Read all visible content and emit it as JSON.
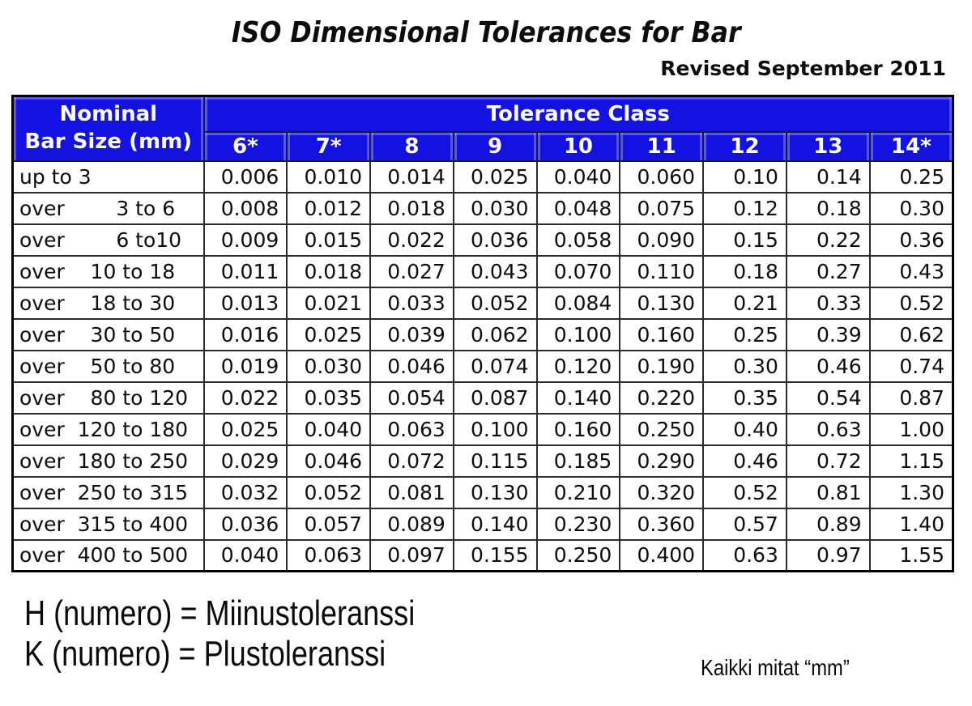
{
  "title": "ISO Dimensional Tolerances for Bar",
  "revised": "Revised September 2011",
  "colors": {
    "header_blue": "#1412e2",
    "header_text": "#ffffff",
    "grid_border": "#2b2b2b",
    "outer_border": "#000000"
  },
  "table": {
    "corner_line1": "Nominal",
    "corner_line2": "Bar Size (mm)",
    "group_header": "Tolerance Class",
    "class_columns": [
      "6*",
      "7*",
      "8",
      "9",
      "10",
      "11",
      "12",
      "13",
      "14*"
    ],
    "rows": [
      {
        "size": "up to 3",
        "values": [
          "0.006",
          "0.010",
          "0.014",
          "0.025",
          "0.040",
          "0.060",
          "0.10",
          "0.14",
          "0.25"
        ]
      },
      {
        "size": "over        3 to 6",
        "values": [
          "0.008",
          "0.012",
          "0.018",
          "0.030",
          "0.048",
          "0.075",
          "0.12",
          "0.18",
          "0.30"
        ]
      },
      {
        "size": "over        6 to10",
        "values": [
          "0.009",
          "0.015",
          "0.022",
          "0.036",
          "0.058",
          "0.090",
          "0.15",
          "0.22",
          "0.36"
        ]
      },
      {
        "size": "over    10 to 18",
        "values": [
          "0.011",
          "0.018",
          "0.027",
          "0.043",
          "0.070",
          "0.110",
          "0.18",
          "0.27",
          "0.43"
        ]
      },
      {
        "size": "over    18 to 30",
        "values": [
          "0.013",
          "0.021",
          "0.033",
          "0.052",
          "0.084",
          "0.130",
          "0.21",
          "0.33",
          "0.52"
        ]
      },
      {
        "size": "over    30 to 50",
        "values": [
          "0.016",
          "0.025",
          "0.039",
          "0.062",
          "0.100",
          "0.160",
          "0.25",
          "0.39",
          "0.62"
        ]
      },
      {
        "size": "over    50 to 80",
        "values": [
          "0.019",
          "0.030",
          "0.046",
          "0.074",
          "0.120",
          "0.190",
          "0.30",
          "0.46",
          "0.74"
        ]
      },
      {
        "size": "over    80 to 120",
        "values": [
          "0.022",
          "0.035",
          "0.054",
          "0.087",
          "0.140",
          "0.220",
          "0.35",
          "0.54",
          "0.87"
        ]
      },
      {
        "size": "over  120 to 180",
        "values": [
          "0.025",
          "0.040",
          "0.063",
          "0.100",
          "0.160",
          "0.250",
          "0.40",
          "0.63",
          "1.00"
        ]
      },
      {
        "size": "over  180 to 250",
        "values": [
          "0.029",
          "0.046",
          "0.072",
          "0.115",
          "0.185",
          "0.290",
          "0.46",
          "0.72",
          "1.15"
        ]
      },
      {
        "size": "over  250 to 315",
        "values": [
          "0.032",
          "0.052",
          "0.081",
          "0.130",
          "0.210",
          "0.320",
          "0.52",
          "0.81",
          "1.30"
        ]
      },
      {
        "size": "over  315 to 400",
        "values": [
          "0.036",
          "0.057",
          "0.089",
          "0.140",
          "0.230",
          "0.360",
          "0.57",
          "0.89",
          "1.40"
        ]
      },
      {
        "size": "over  400 to 500",
        "values": [
          "0.040",
          "0.063",
          "0.097",
          "0.155",
          "0.250",
          "0.400",
          "0.63",
          "0.97",
          "1.55"
        ]
      }
    ]
  },
  "footer": {
    "line1": "H (numero) = Miinustoleranssi",
    "line2": "K (numero) = Plustoleranssi",
    "units_note": "Kaikki mitat “mm”"
  }
}
